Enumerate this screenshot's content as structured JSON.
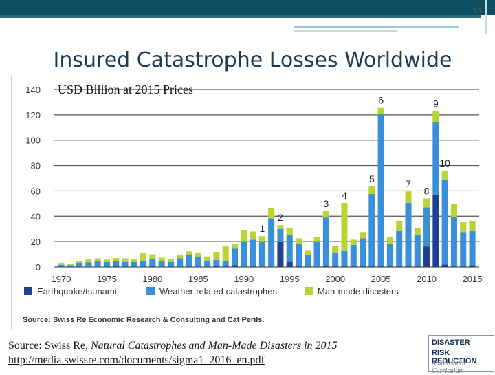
{
  "slide": {
    "number": "31",
    "title": "Insured Catastrophe Losses Worldwide",
    "subtitle": "USD Billion at 2015 Prices",
    "source_prefix": "Source: Swiss Re, ",
    "source_italic": "Natural Catastrophes and Man-Made Disasters in 2015",
    "source_url": "http://media.swissre.com/documents/sigma1_2016_en.pdf"
  },
  "logo": {
    "line1": "DISASTER",
    "line2": "RISK REDUCTION",
    "line3": "Ambassador Curriculum"
  },
  "chart_data": {
    "type": "bar",
    "stacked": true,
    "ylim": [
      0,
      140
    ],
    "yticks": [
      0,
      20,
      40,
      60,
      80,
      100,
      120,
      140
    ],
    "xtick_labels": [
      "1970",
      "1975",
      "1980",
      "1985",
      "1990",
      "1995",
      "2000",
      "2005",
      "2010",
      "2015"
    ],
    "categories": [
      1970,
      1971,
      1972,
      1973,
      1974,
      1975,
      1976,
      1977,
      1978,
      1979,
      1980,
      1981,
      1982,
      1983,
      1984,
      1985,
      1986,
      1987,
      1988,
      1989,
      1990,
      1991,
      1992,
      1993,
      1994,
      1995,
      1996,
      1997,
      1998,
      1999,
      2000,
      2001,
      2002,
      2003,
      2004,
      2005,
      2006,
      2007,
      2008,
      2009,
      2010,
      2011,
      2012,
      2013,
      2014,
      2015
    ],
    "series": [
      {
        "name": "Earthquake/tsunami",
        "color": "#1f3f8f",
        "values": [
          0.3,
          0.3,
          0.4,
          0.2,
          0.3,
          0.3,
          0.5,
          0.3,
          0.3,
          0.3,
          0.5,
          0.3,
          0.3,
          0.3,
          0.3,
          0.4,
          0.3,
          1.0,
          0.5,
          1.5,
          0.3,
          0.5,
          0.3,
          0.3,
          20.0,
          4.0,
          0.5,
          0.3,
          0.3,
          1.0,
          0.5,
          0.5,
          0.5,
          0.5,
          0.5,
          0.5,
          0.5,
          0.5,
          0.6,
          0.5,
          16.0,
          57.0,
          2.0,
          0.5,
          0.5,
          1.5
        ]
      },
      {
        "name": "Weather-related catastrophes",
        "color": "#3a8fd9",
        "values": [
          1.5,
          1.2,
          3.0,
          3.5,
          4.5,
          3.5,
          4.0,
          3.5,
          3.5,
          4.5,
          5.5,
          4.5,
          3.5,
          6.5,
          9.0,
          7.5,
          4.5,
          4.5,
          4.0,
          13.0,
          20.0,
          21.0,
          20.0,
          38.0,
          10.0,
          21.0,
          18.0,
          9.0,
          20.0,
          38.0,
          11.0,
          12.0,
          17.0,
          22.0,
          57.0,
          120.0,
          18.0,
          28.0,
          50.0,
          25.0,
          31.0,
          57.0,
          67.0,
          39.0,
          27.0,
          27.0
        ]
      },
      {
        "name": "Man-made disasters",
        "color": "#b9d435",
        "values": [
          1.5,
          1.0,
          1.5,
          2.5,
          2.0,
          2.0,
          2.5,
          3.0,
          2.5,
          6.0,
          4.0,
          2.5,
          2.5,
          3.0,
          3.0,
          3.0,
          3.5,
          6.5,
          12.0,
          3.5,
          9.0,
          6.5,
          4.0,
          8.0,
          3.0,
          6.0,
          4.0,
          3.5,
          3.5,
          5.0,
          5.0,
          38.0,
          4.0,
          5.0,
          6.0,
          5.0,
          5.0,
          8.0,
          9.0,
          5.0,
          7.0,
          9.0,
          7.0,
          10.0,
          8.0,
          8.0
        ]
      }
    ],
    "event_labels": [
      {
        "year": 1992,
        "label": "1"
      },
      {
        "year": 1994,
        "label": "2"
      },
      {
        "year": 1999,
        "label": "3"
      },
      {
        "year": 2001,
        "label": "4"
      },
      {
        "year": 2004,
        "label": "5"
      },
      {
        "year": 2005,
        "label": "6"
      },
      {
        "year": 2008,
        "label": "7"
      },
      {
        "year": 2010,
        "label": "8"
      },
      {
        "year": 2011,
        "label": "9"
      },
      {
        "year": 2012,
        "label": "10"
      }
    ],
    "source_note": "Source: Swiss Re Economic Research & Consulting and Cat Perils.",
    "grid": true,
    "legend_position": "bottom"
  }
}
